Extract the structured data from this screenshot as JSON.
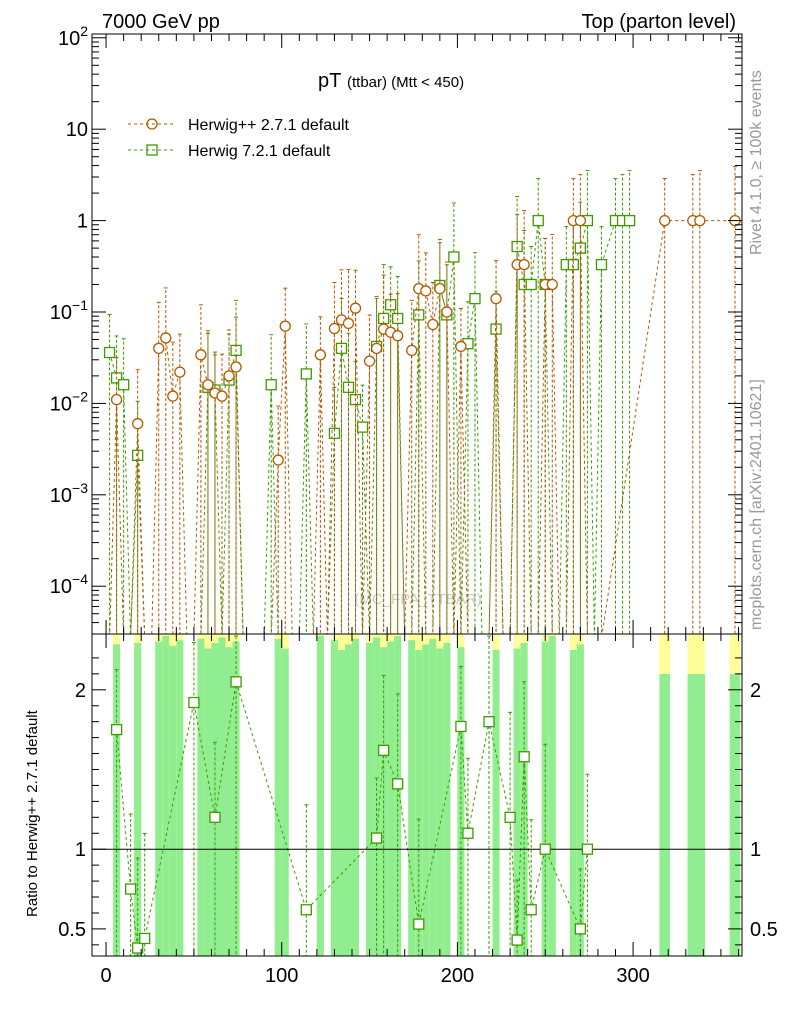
{
  "header": {
    "left": "7000 GeV pp",
    "right": "Top (parton level)"
  },
  "side_labels": {
    "rivet": "Rivet 4.1.0, ≥ 100k events",
    "mcplots": "mcplots.cern.ch [arXiv:2401.10621]"
  },
  "watermark": "(MC_FPA_TTBAR)",
  "colors": {
    "herwigpp": "#b35900",
    "herwig7": "#3d9b00",
    "band_green": "#90ee90",
    "band_yellow": "#ffff99"
  },
  "chart_data": [
    {
      "type": "scatter",
      "title": "pT",
      "title_small": "(ttbar) (Mtt < 450)",
      "yscale": "log",
      "xlim": [
        -8,
        362
      ],
      "ylim": [
        3e-05,
        110
      ],
      "y_ticks": [
        {
          "value": 0.0001,
          "base": "10",
          "exp": "−4"
        },
        {
          "value": 0.001,
          "base": "10",
          "exp": "−3"
        },
        {
          "value": 0.01,
          "base": "10",
          "exp": "−2"
        },
        {
          "value": 0.1,
          "base": "10",
          "exp": "−1"
        },
        {
          "value": 1,
          "base": "1",
          "exp": ""
        },
        {
          "value": 10,
          "base": "10",
          "exp": ""
        },
        {
          "value": 100,
          "base": "10",
          "exp": "2"
        }
      ],
      "legend": {
        "position": "top-left",
        "entries": [
          "Herwig++ 2.7.1 default",
          "Herwig 7.2.1 default"
        ]
      },
      "series": [
        {
          "name": "Herwig++ 2.7.1 default",
          "marker": "circle",
          "x": [
            2,
            6,
            10,
            14,
            18,
            22,
            26,
            30,
            34,
            38,
            42,
            46,
            50,
            54,
            58,
            62,
            66,
            70,
            74,
            78,
            82,
            86,
            90,
            94,
            98,
            102,
            106,
            110,
            114,
            118,
            122,
            126,
            130,
            134,
            138,
            142,
            146,
            150,
            154,
            158,
            162,
            166,
            170,
            174,
            178,
            182,
            186,
            190,
            194,
            198,
            202,
            206,
            210,
            214,
            218,
            222,
            226,
            230,
            234,
            238,
            242,
            246,
            250,
            254,
            258,
            262,
            266,
            270,
            274,
            278,
            282,
            318,
            334,
            338,
            358
          ],
          "y": [
            0,
            0.011,
            0,
            0,
            0.006,
            0,
            0,
            0.04,
            0.052,
            0.012,
            0.022,
            0,
            0,
            0.034,
            0.016,
            0.013,
            0.012,
            0.02,
            0.025,
            0,
            0,
            0,
            0,
            0,
            0.0024,
            0.07,
            0,
            0,
            0,
            0,
            0.034,
            0,
            0.066,
            0.082,
            0.075,
            0.11,
            0,
            0.029,
            0.04,
            0.065,
            0.06,
            0.055,
            0,
            0.038,
            0.18,
            0.17,
            0.073,
            0.18,
            0.1,
            0,
            0.042,
            0,
            0,
            0,
            0,
            0.14,
            0,
            0,
            0.33,
            0.33,
            0,
            0,
            0.2,
            0.2,
            0,
            0,
            1,
            1,
            0,
            0,
            0,
            1,
            1,
            1,
            1
          ]
        },
        {
          "name": "Herwig 7.2.1 default",
          "marker": "square",
          "x": [
            2,
            6,
            10,
            14,
            18,
            22,
            26,
            30,
            34,
            38,
            42,
            46,
            50,
            54,
            58,
            62,
            66,
            70,
            74,
            78,
            82,
            86,
            90,
            94,
            98,
            102,
            106,
            110,
            114,
            118,
            122,
            126,
            130,
            134,
            138,
            142,
            146,
            150,
            154,
            158,
            162,
            166,
            170,
            174,
            178,
            182,
            186,
            190,
            194,
            198,
            202,
            206,
            210,
            214,
            218,
            222,
            226,
            230,
            234,
            238,
            242,
            246,
            250,
            254,
            258,
            262,
            266,
            270,
            274,
            278,
            282,
            290,
            294,
            298
          ],
          "y": [
            0.036,
            0.019,
            0.016,
            0,
            0.0027,
            0,
            0,
            0,
            0,
            0,
            0,
            0,
            0,
            0,
            0.015,
            0.014,
            0,
            0.018,
            0.038,
            0,
            0,
            0,
            0,
            0.016,
            0,
            0,
            0,
            0,
            0.021,
            0,
            0,
            0,
            0.0047,
            0.04,
            0.015,
            0.011,
            0.0055,
            0,
            0.042,
            0.085,
            0.12,
            0.085,
            0,
            0,
            0.093,
            0,
            0,
            0.195,
            0.093,
            0.4,
            0,
            0.045,
            0.14,
            0,
            0,
            0.065,
            0,
            0,
            0.52,
            0.2,
            0.2,
            1,
            0.2,
            0,
            0,
            0.33,
            0.33,
            0.5,
            1,
            0,
            0.33,
            1,
            1,
            1
          ]
        }
      ]
    },
    {
      "type": "scatter",
      "ylabel": "Ratio to Herwig++ 2.7.1 default",
      "xlim": [
        -8,
        362
      ],
      "ylim": [
        0.33,
        2.35
      ],
      "x_ticks": [
        0,
        100,
        200,
        300
      ],
      "y_ticks": [
        0.5,
        1,
        2
      ],
      "reference_line": 1,
      "series": [
        {
          "name": "Herwig 7.2.1 default / Herwig++ 2.7.1 default",
          "marker": "square",
          "x": [
            6,
            14,
            18,
            22,
            50,
            62,
            74,
            114,
            154,
            158,
            166,
            178,
            202,
            206,
            218,
            230,
            234,
            238,
            242,
            250,
            270,
            274
          ],
          "y": [
            1.75,
            0.75,
            0.38,
            0.44,
            1.92,
            1.2,
            2.05,
            0.62,
            1.07,
            1.62,
            1.41,
            0.53,
            1.77,
            1.1,
            1.8,
            1.2,
            0.43,
            1.58,
            0.62,
            1,
            0.5,
            1
          ]
        }
      ]
    }
  ]
}
